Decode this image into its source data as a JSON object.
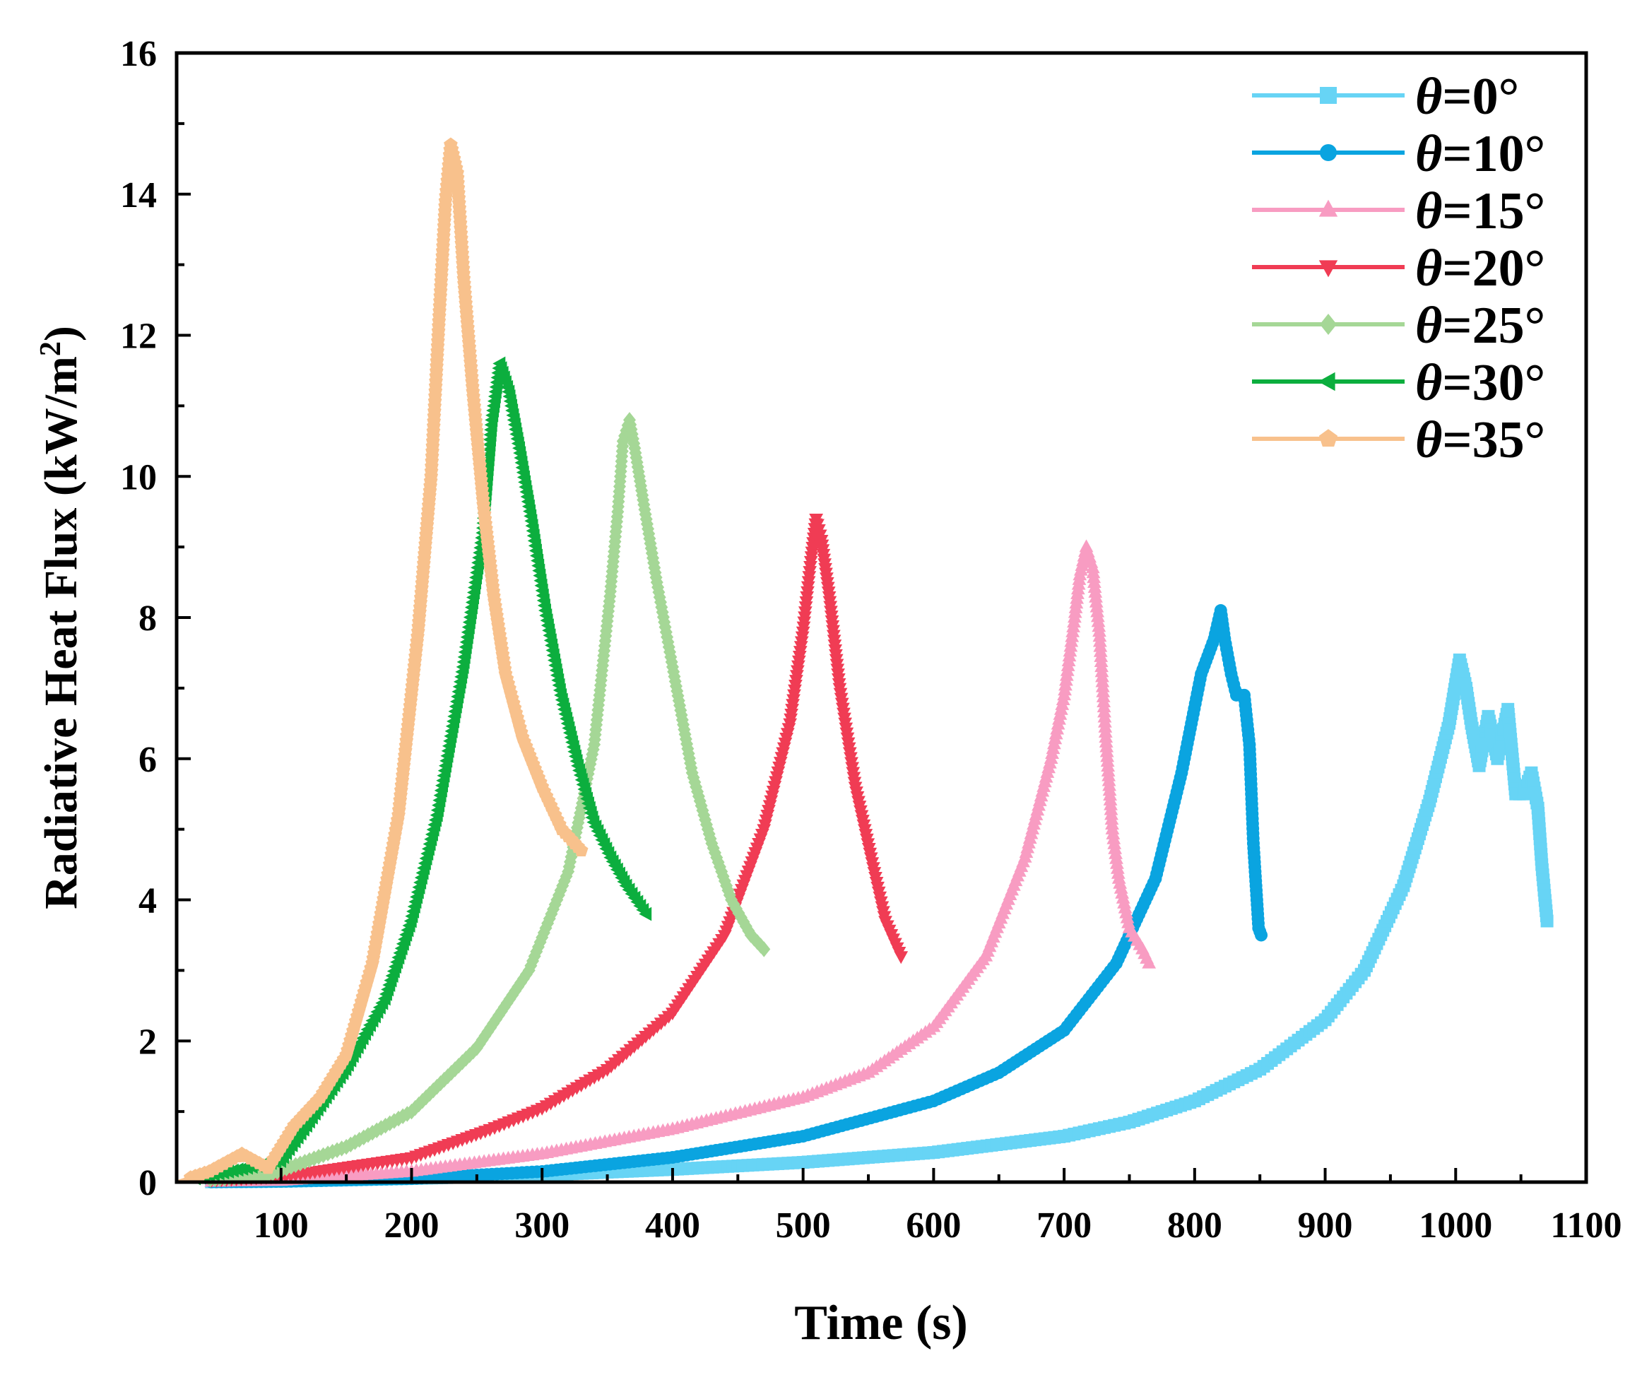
{
  "chart_data": {
    "type": "line",
    "xlabel": "Time (s)",
    "ylabel": "Radiative Heat Flux (kW/m²)",
    "xlim": [
      20,
      1100
    ],
    "ylim": [
      0,
      16
    ],
    "xticks": [
      100,
      200,
      300,
      400,
      500,
      600,
      700,
      800,
      900,
      1000,
      1100
    ],
    "yticks": [
      0,
      2,
      4,
      6,
      8,
      10,
      12,
      14,
      16
    ],
    "legend_position": "top-right",
    "grid": false,
    "series": [
      {
        "name": "θ=0°",
        "color": "#67d4f5",
        "marker": "square",
        "points": [
          [
            20,
            0
          ],
          [
            100,
            0.01
          ],
          [
            200,
            0.05
          ],
          [
            300,
            0.1
          ],
          [
            400,
            0.18
          ],
          [
            500,
            0.28
          ],
          [
            600,
            0.42
          ],
          [
            700,
            0.65
          ],
          [
            750,
            0.85
          ],
          [
            800,
            1.15
          ],
          [
            850,
            1.6
          ],
          [
            900,
            2.3
          ],
          [
            930,
            3.0
          ],
          [
            960,
            4.2
          ],
          [
            980,
            5.4
          ],
          [
            995,
            6.5
          ],
          [
            1003,
            7.4
          ],
          [
            1008,
            7.0
          ],
          [
            1012,
            6.5
          ],
          [
            1018,
            5.9
          ],
          [
            1025,
            6.6
          ],
          [
            1032,
            6.0
          ],
          [
            1040,
            6.7
          ],
          [
            1046,
            5.5
          ],
          [
            1052,
            5.5
          ],
          [
            1058,
            5.8
          ],
          [
            1063,
            5.3
          ],
          [
            1066,
            4.5
          ],
          [
            1070,
            3.7
          ]
        ]
      },
      {
        "name": "θ=10°",
        "color": "#0aa4e0",
        "marker": "circle",
        "points": [
          [
            20,
            0
          ],
          [
            100,
            0.01
          ],
          [
            200,
            0.05
          ],
          [
            300,
            0.15
          ],
          [
            400,
            0.35
          ],
          [
            500,
            0.65
          ],
          [
            600,
            1.15
          ],
          [
            650,
            1.55
          ],
          [
            700,
            2.15
          ],
          [
            740,
            3.1
          ],
          [
            770,
            4.3
          ],
          [
            790,
            5.8
          ],
          [
            805,
            7.2
          ],
          [
            815,
            7.7
          ],
          [
            820,
            8.1
          ],
          [
            823,
            7.7
          ],
          [
            828,
            7.2
          ],
          [
            832,
            6.9
          ],
          [
            838,
            6.9
          ],
          [
            842,
            6.2
          ],
          [
            845,
            4.8
          ],
          [
            847,
            4.2
          ],
          [
            849,
            3.6
          ],
          [
            851,
            3.5
          ]
        ]
      },
      {
        "name": "θ=15°",
        "color": "#f89cc2",
        "marker": "triangle-up",
        "points": [
          [
            20,
            0
          ],
          [
            100,
            0.02
          ],
          [
            200,
            0.15
          ],
          [
            300,
            0.4
          ],
          [
            400,
            0.75
          ],
          [
            500,
            1.2
          ],
          [
            550,
            1.55
          ],
          [
            600,
            2.2
          ],
          [
            640,
            3.2
          ],
          [
            670,
            4.6
          ],
          [
            690,
            6.0
          ],
          [
            700,
            6.9
          ],
          [
            708,
            8.0
          ],
          [
            712,
            8.6
          ],
          [
            717,
            9.0
          ],
          [
            722,
            8.7
          ],
          [
            727,
            7.8
          ],
          [
            732,
            6.3
          ],
          [
            737,
            5.0
          ],
          [
            742,
            4.3
          ],
          [
            750,
            3.6
          ],
          [
            760,
            3.3
          ],
          [
            765,
            3.1
          ]
        ]
      },
      {
        "name": "θ=20°",
        "color": "#f03c54",
        "marker": "triangle-down",
        "points": [
          [
            20,
            0
          ],
          [
            100,
            0.08
          ],
          [
            200,
            0.35
          ],
          [
            260,
            0.75
          ],
          [
            300,
            1.05
          ],
          [
            350,
            1.6
          ],
          [
            400,
            2.4
          ],
          [
            440,
            3.5
          ],
          [
            470,
            5.0
          ],
          [
            490,
            6.5
          ],
          [
            500,
            7.8
          ],
          [
            506,
            8.8
          ],
          [
            510,
            9.4
          ],
          [
            514,
            9.1
          ],
          [
            520,
            8.3
          ],
          [
            528,
            7.0
          ],
          [
            540,
            5.6
          ],
          [
            552,
            4.6
          ],
          [
            563,
            3.7
          ],
          [
            575,
            3.2
          ]
        ]
      },
      {
        "name": "θ=25°",
        "color": "#a5d796",
        "marker": "diamond",
        "points": [
          [
            20,
            0
          ],
          [
            90,
            0.1
          ],
          [
            150,
            0.5
          ],
          [
            200,
            1.0
          ],
          [
            250,
            1.9
          ],
          [
            290,
            3.0
          ],
          [
            320,
            4.4
          ],
          [
            340,
            6.2
          ],
          [
            352,
            8.3
          ],
          [
            358,
            9.5
          ],
          [
            362,
            10.5
          ],
          [
            367,
            10.8
          ],
          [
            371,
            10.4
          ],
          [
            378,
            9.6
          ],
          [
            388,
            8.5
          ],
          [
            400,
            7.3
          ],
          [
            415,
            5.8
          ],
          [
            430,
            4.8
          ],
          [
            445,
            4.0
          ],
          [
            460,
            3.5
          ],
          [
            470,
            3.3
          ]
        ]
      },
      {
        "name": "θ=30°",
        "color": "#0cae3e",
        "marker": "triangle-left",
        "points": [
          [
            20,
            0
          ],
          [
            60,
            0.15
          ],
          [
            100,
            0.3
          ],
          [
            120,
            0.8
          ],
          [
            150,
            1.6
          ],
          [
            180,
            2.6
          ],
          [
            200,
            3.7
          ],
          [
            220,
            5.2
          ],
          [
            240,
            7.3
          ],
          [
            255,
            9.2
          ],
          [
            262,
            10.8
          ],
          [
            268,
            11.6
          ],
          [
            275,
            11.2
          ],
          [
            283,
            10.4
          ],
          [
            293,
            9.3
          ],
          [
            303,
            8.1
          ],
          [
            315,
            6.9
          ],
          [
            328,
            5.9
          ],
          [
            340,
            5.1
          ],
          [
            353,
            4.6
          ],
          [
            365,
            4.2
          ],
          [
            380,
            3.8
          ]
        ]
      },
      {
        "name": "θ=35°",
        "color": "#f8c18c",
        "marker": "pentagon",
        "points": [
          [
            20,
            0
          ],
          [
            45,
            0.15
          ],
          [
            70,
            0.4
          ],
          [
            90,
            0.2
          ],
          [
            110,
            0.8
          ],
          [
            130,
            1.2
          ],
          [
            150,
            1.8
          ],
          [
            170,
            3.1
          ],
          [
            190,
            5.2
          ],
          [
            205,
            7.8
          ],
          [
            215,
            10.0
          ],
          [
            221,
            12.2
          ],
          [
            226,
            13.9
          ],
          [
            230,
            14.7
          ],
          [
            235,
            14.3
          ],
          [
            240,
            12.8
          ],
          [
            247,
            11.2
          ],
          [
            255,
            9.6
          ],
          [
            263,
            8.3
          ],
          [
            272,
            7.2
          ],
          [
            285,
            6.3
          ],
          [
            300,
            5.6
          ],
          [
            315,
            5.0
          ],
          [
            330,
            4.7
          ]
        ]
      }
    ]
  }
}
